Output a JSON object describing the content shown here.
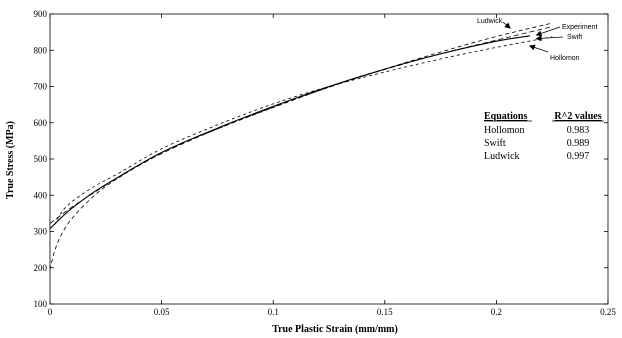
{
  "chart_data": {
    "type": "line",
    "xlabel": "True Plastic Strain (mm/mm)",
    "ylabel": "True Stress (MPa)",
    "xlim": [
      0,
      0.25
    ],
    "ylim": [
      100,
      900
    ],
    "x_ticks": [
      0,
      0.05,
      0.1,
      0.15,
      0.2,
      0.25
    ],
    "x_tick_labels": [
      "0",
      "0.05",
      "0.1",
      "0.15",
      "0.2",
      "0.25"
    ],
    "y_ticks": [
      100,
      200,
      300,
      400,
      500,
      600,
      700,
      800,
      900
    ],
    "y_tick_labels": [
      "100",
      "200",
      "300",
      "400",
      "500",
      "600",
      "700",
      "800",
      "900"
    ],
    "grid": false,
    "series": [
      {
        "name": "Experiment",
        "style": "solid",
        "x": [
          0,
          0.005,
          0.01,
          0.02,
          0.03,
          0.05,
          0.075,
          0.1,
          0.125,
          0.15,
          0.175,
          0.2,
          0.215
        ],
        "y": [
          308,
          338,
          365,
          410,
          448,
          518,
          585,
          645,
          700,
          748,
          790,
          825,
          840
        ]
      },
      {
        "name": "Ludwick",
        "style": "dashed",
        "x": [
          0,
          0.002,
          0.005,
          0.01,
          0.02,
          0.03,
          0.05,
          0.075,
          0.1,
          0.125,
          0.15,
          0.175,
          0.2,
          0.225
        ],
        "y": [
          195,
          245,
          290,
          337,
          400,
          445,
          518,
          583,
          642,
          698,
          748,
          795,
          838,
          875
        ]
      },
      {
        "name": "Swift",
        "style": "dashed",
        "x": [
          0,
          0.01,
          0.02,
          0.03,
          0.05,
          0.075,
          0.1,
          0.125,
          0.15,
          0.175,
          0.2,
          0.225
        ],
        "y": [
          322,
          368,
          408,
          447,
          515,
          583,
          643,
          698,
          747,
          790,
          828,
          865
        ]
      },
      {
        "name": "Hollomon",
        "style": "dashed",
        "x": [
          0.002,
          0.005,
          0.01,
          0.02,
          0.03,
          0.05,
          0.075,
          0.1,
          0.125,
          0.15,
          0.175,
          0.2,
          0.225
        ],
        "y": [
          318,
          352,
          383,
          425,
          458,
          528,
          594,
          652,
          700,
          740,
          776,
          808,
          837
        ]
      }
    ],
    "annotations": [
      {
        "text": "Ludwick",
        "arrow_to": [
          0.205,
          858
        ]
      },
      {
        "text": "Experiment",
        "arrow_to": [
          0.218,
          842
        ]
      },
      {
        "text": "Swift",
        "arrow_to": [
          0.218,
          832
        ]
      },
      {
        "text": "Hollomon",
        "arrow_to": [
          0.215,
          812
        ]
      }
    ],
    "table": {
      "headers": [
        "Equations",
        "R^2 values"
      ],
      "rows": [
        [
          "Hollomon",
          "0.983"
        ],
        [
          "Swift",
          "0.989"
        ],
        [
          "Ludwick",
          "0.997"
        ]
      ]
    }
  }
}
